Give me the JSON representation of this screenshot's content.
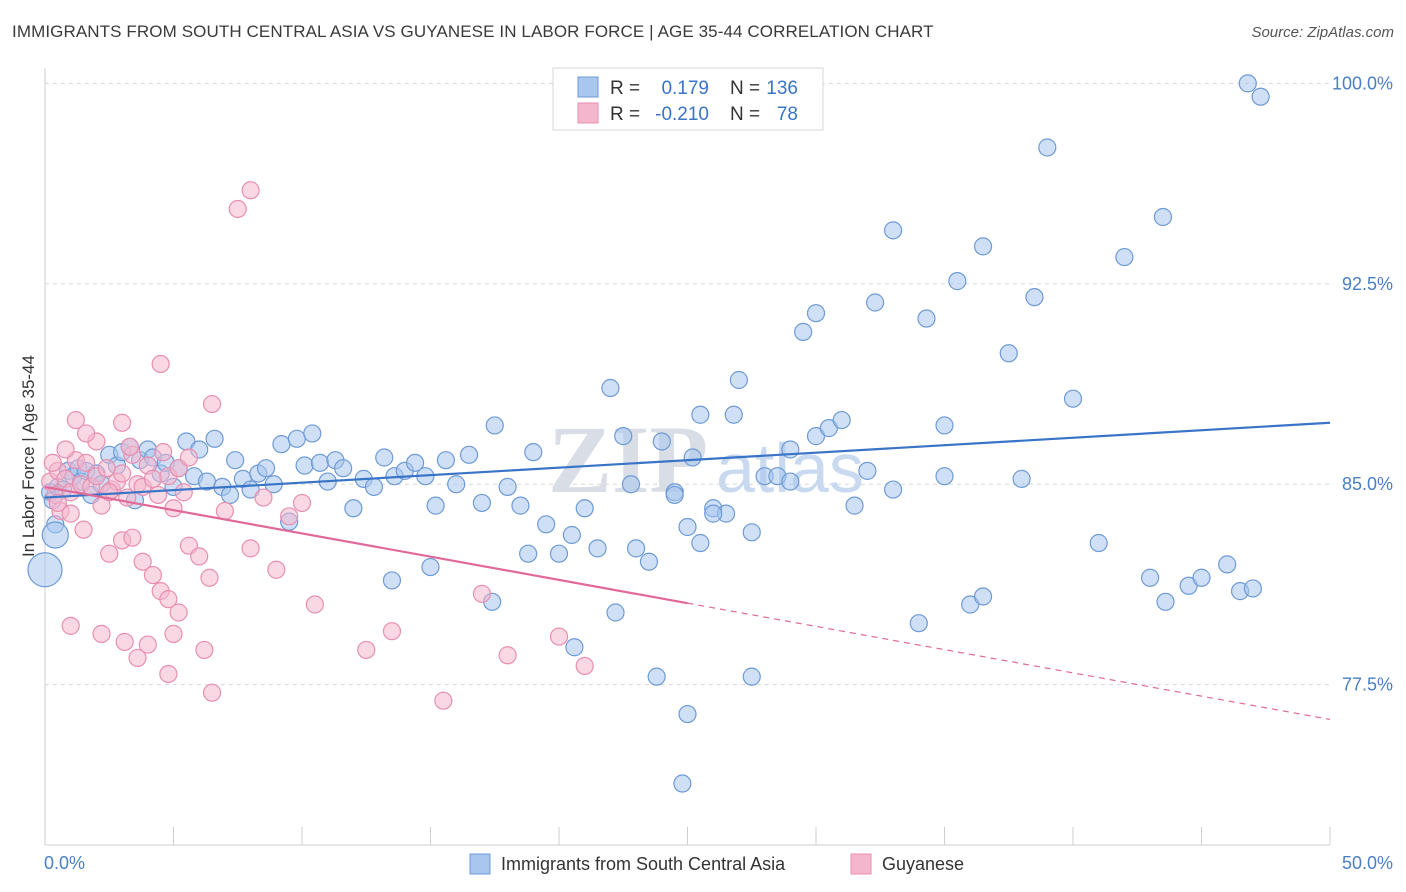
{
  "title": "IMMIGRANTS FROM SOUTH CENTRAL ASIA VS GUYANESE IN LABOR FORCE | AGE 35-44 CORRELATION CHART",
  "source": "Source: ZipAtlas.com",
  "colors": {
    "blue": "#3a74c6",
    "blue_fill": "#a8c6ee",
    "pink": "#e0699a",
    "pink_fill": "#f4b6cc",
    "axis_text": "#4a7fc4"
  },
  "legend_box": {
    "rows": [
      {
        "r_label": "R =",
        "r_value": "0.179",
        "n_label": "N =",
        "n_value": "136"
      },
      {
        "r_label": "R =",
        "r_value": "-0.210",
        "n_label": "N =",
        "n_value": "78"
      }
    ]
  },
  "watermark": {
    "zip": "ZIP",
    "atlas": "atlas"
  },
  "chart_data": {
    "type": "scatter",
    "ylabel": "In Labor Force | Age 35-44",
    "xlim": [
      0,
      50
    ],
    "ylim": [
      71.5,
      100.5
    ],
    "x_tick_labels": [
      "0.0%",
      "50.0%"
    ],
    "y_ticks": [
      77.5,
      85.0,
      92.5,
      100.0
    ],
    "y_tick_labels": [
      "77.5%",
      "85.0%",
      "92.5%",
      "100.0%"
    ],
    "grid": "horizontal dashed",
    "legend_position": "bottom",
    "series": [
      {
        "name": "Immigrants from South Central Asia",
        "color": "#3a74c6",
        "trend": {
          "x": [
            0,
            50
          ],
          "y": [
            84.5,
            87.3
          ]
        },
        "points": [
          [
            0.2,
            84.7
          ],
          [
            0.4,
            83.5
          ],
          [
            0.3,
            84.4
          ],
          [
            0.5,
            84.9
          ],
          [
            0.7,
            84.8
          ],
          [
            0.9,
            85.5
          ],
          [
            1.1,
            85.3
          ],
          [
            1.3,
            85.6
          ],
          [
            1.4,
            85.1
          ],
          [
            1.6,
            85.5
          ],
          [
            1.8,
            84.6
          ],
          [
            2.0,
            85.4
          ],
          [
            2.2,
            85.0
          ],
          [
            2.5,
            86.1
          ],
          [
            2.8,
            85.7
          ],
          [
            3.0,
            86.2
          ],
          [
            3.3,
            86.4
          ],
          [
            3.5,
            84.4
          ],
          [
            3.7,
            85.9
          ],
          [
            4.0,
            86.3
          ],
          [
            4.2,
            86.0
          ],
          [
            4.5,
            85.4
          ],
          [
            4.7,
            85.8
          ],
          [
            5.0,
            84.9
          ],
          [
            5.2,
            85.6
          ],
          [
            5.5,
            86.6
          ],
          [
            5.8,
            85.3
          ],
          [
            6.0,
            86.3
          ],
          [
            6.3,
            85.1
          ],
          [
            6.6,
            86.7
          ],
          [
            6.9,
            84.9
          ],
          [
            7.2,
            84.6
          ],
          [
            7.4,
            85.9
          ],
          [
            7.7,
            85.2
          ],
          [
            8.0,
            84.8
          ],
          [
            8.3,
            85.4
          ],
          [
            8.6,
            85.6
          ],
          [
            8.9,
            85.0
          ],
          [
            9.2,
            86.5
          ],
          [
            9.5,
            83.6
          ],
          [
            9.8,
            86.7
          ],
          [
            10.1,
            85.7
          ],
          [
            10.4,
            86.9
          ],
          [
            10.7,
            85.8
          ],
          [
            11.0,
            85.1
          ],
          [
            11.3,
            85.9
          ],
          [
            11.6,
            85.6
          ],
          [
            12.0,
            84.1
          ],
          [
            12.4,
            85.2
          ],
          [
            12.8,
            84.9
          ],
          [
            13.2,
            86.0
          ],
          [
            13.6,
            85.3
          ],
          [
            14.0,
            85.5
          ],
          [
            14.4,
            85.8
          ],
          [
            14.8,
            85.3
          ],
          [
            15.2,
            84.2
          ],
          [
            15.6,
            85.9
          ],
          [
            16.0,
            85.0
          ],
          [
            16.5,
            86.1
          ],
          [
            17.0,
            84.3
          ],
          [
            17.5,
            87.2
          ],
          [
            18.0,
            84.9
          ],
          [
            18.5,
            84.2
          ],
          [
            19.0,
            86.2
          ],
          [
            19.5,
            83.5
          ],
          [
            20.0,
            82.4
          ],
          [
            20.5,
            83.1
          ],
          [
            21.0,
            84.1
          ],
          [
            21.5,
            82.6
          ],
          [
            22.0,
            88.6
          ],
          [
            22.5,
            86.8
          ],
          [
            23.0,
            82.6
          ],
          [
            23.5,
            82.1
          ],
          [
            24.0,
            86.6
          ],
          [
            24.5,
            84.7
          ],
          [
            25.0,
            83.4
          ],
          [
            25.5,
            87.6
          ],
          [
            26.0,
            84.1
          ],
          [
            26.5,
            83.9
          ],
          [
            27.0,
            88.9
          ],
          [
            27.5,
            83.2
          ],
          [
            28.0,
            85.3
          ],
          [
            29.0,
            86.3
          ],
          [
            30.0,
            86.8
          ],
          [
            30.5,
            87.1
          ],
          [
            31.0,
            87.4
          ],
          [
            32.0,
            85.5
          ],
          [
            33.0,
            84.8
          ],
          [
            24.5,
            84.6
          ],
          [
            25.5,
            82.8
          ],
          [
            13.5,
            81.4
          ],
          [
            15.0,
            81.9
          ],
          [
            17.4,
            80.6
          ],
          [
            18.8,
            82.4
          ],
          [
            20.6,
            78.9
          ],
          [
            22.2,
            80.2
          ],
          [
            22.8,
            85.0
          ],
          [
            23.8,
            77.8
          ],
          [
            25.0,
            76.4
          ],
          [
            26.0,
            83.9
          ],
          [
            27.5,
            77.8
          ],
          [
            25.2,
            86.0
          ],
          [
            26.8,
            87.6
          ],
          [
            28.5,
            85.3
          ],
          [
            29.0,
            85.1
          ],
          [
            31.5,
            84.2
          ],
          [
            34.0,
            79.8
          ],
          [
            35.0,
            85.3
          ],
          [
            36.0,
            80.5
          ],
          [
            36.5,
            80.8
          ],
          [
            37.5,
            89.9
          ],
          [
            38.0,
            85.2
          ],
          [
            34.3,
            91.2
          ],
          [
            35.5,
            92.6
          ],
          [
            40.0,
            88.2
          ],
          [
            41.0,
            82.8
          ],
          [
            42.0,
            93.5
          ],
          [
            43.0,
            81.5
          ],
          [
            43.6,
            80.6
          ],
          [
            44.5,
            81.2
          ],
          [
            45.0,
            81.5
          ],
          [
            46.0,
            82.0
          ],
          [
            46.5,
            81.0
          ],
          [
            47.0,
            81.1
          ],
          [
            35.0,
            87.2
          ],
          [
            29.5,
            90.7
          ],
          [
            30.0,
            91.4
          ],
          [
            33.0,
            94.5
          ],
          [
            32.3,
            91.8
          ],
          [
            24.8,
            73.8
          ],
          [
            36.5,
            93.9
          ],
          [
            38.5,
            92.0
          ],
          [
            39.0,
            97.6
          ],
          [
            43.5,
            95.0
          ],
          [
            47.3,
            99.5
          ],
          [
            46.8,
            100.0
          ]
        ]
      },
      {
        "name": "Guyanese",
        "color": "#e0699a",
        "trend": {
          "x": [
            0,
            50
          ],
          "y": [
            84.9,
            76.2
          ]
        },
        "points": [
          [
            0.2,
            85.1
          ],
          [
            0.4,
            84.6
          ],
          [
            0.5,
            85.5
          ],
          [
            0.6,
            84.0
          ],
          [
            0.8,
            85.2
          ],
          [
            1.0,
            84.7
          ],
          [
            1.2,
            85.9
          ],
          [
            1.4,
            85.0
          ],
          [
            1.6,
            85.8
          ],
          [
            1.8,
            84.9
          ],
          [
            2.0,
            85.3
          ],
          [
            2.2,
            84.2
          ],
          [
            2.4,
            85.6
          ],
          [
            2.6,
            84.8
          ],
          [
            2.8,
            85.1
          ],
          [
            3.0,
            85.4
          ],
          [
            3.2,
            84.5
          ],
          [
            3.4,
            86.1
          ],
          [
            3.6,
            85.0
          ],
          [
            3.8,
            84.9
          ],
          [
            4.0,
            85.7
          ],
          [
            4.2,
            85.2
          ],
          [
            4.4,
            84.6
          ],
          [
            4.6,
            86.2
          ],
          [
            4.8,
            85.3
          ],
          [
            5.0,
            84.1
          ],
          [
            5.2,
            85.6
          ],
          [
            5.4,
            84.7
          ],
          [
            5.6,
            86.0
          ],
          [
            0.3,
            85.8
          ],
          [
            0.5,
            84.3
          ],
          [
            1.0,
            83.9
          ],
          [
            1.5,
            83.3
          ],
          [
            2.0,
            86.6
          ],
          [
            2.5,
            84.7
          ],
          [
            3.0,
            87.3
          ],
          [
            3.3,
            86.4
          ],
          [
            0.8,
            86.3
          ],
          [
            1.2,
            87.4
          ],
          [
            1.6,
            86.9
          ],
          [
            2.5,
            82.4
          ],
          [
            3.0,
            82.9
          ],
          [
            3.4,
            83.0
          ],
          [
            3.8,
            82.1
          ],
          [
            4.2,
            81.6
          ],
          [
            4.5,
            81.0
          ],
          [
            4.8,
            80.7
          ],
          [
            5.2,
            80.2
          ],
          [
            5.6,
            82.7
          ],
          [
            6.0,
            82.3
          ],
          [
            6.4,
            81.5
          ],
          [
            1.0,
            79.7
          ],
          [
            2.2,
            79.4
          ],
          [
            3.1,
            79.1
          ],
          [
            4.0,
            79.0
          ],
          [
            5.0,
            79.4
          ],
          [
            6.2,
            78.8
          ],
          [
            3.6,
            78.5
          ],
          [
            4.8,
            77.9
          ],
          [
            6.5,
            77.2
          ],
          [
            8.0,
            82.6
          ],
          [
            9.0,
            81.8
          ],
          [
            10.5,
            80.5
          ],
          [
            12.5,
            78.8
          ],
          [
            13.5,
            79.5
          ],
          [
            15.5,
            76.9
          ],
          [
            17.0,
            80.9
          ],
          [
            18.0,
            78.6
          ],
          [
            20.0,
            79.3
          ],
          [
            21.0,
            78.2
          ],
          [
            7.0,
            84.0
          ],
          [
            8.5,
            84.5
          ],
          [
            9.5,
            83.8
          ],
          [
            10.0,
            84.3
          ],
          [
            7.5,
            95.3
          ],
          [
            8.0,
            96.0
          ],
          [
            6.5,
            88.0
          ],
          [
            4.5,
            89.5
          ]
        ]
      }
    ]
  }
}
